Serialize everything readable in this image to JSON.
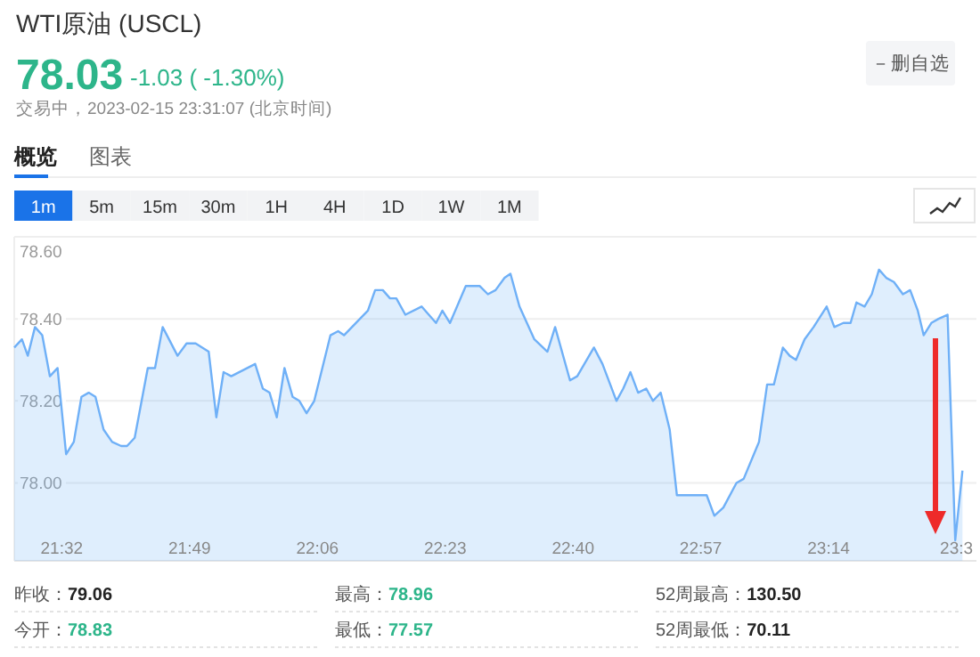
{
  "chart_data": {
    "type": "area",
    "title": "WTI原油 (USCL)",
    "annotations": [
      "78.03",
      "-1.03 ( -1.30%)",
      "交易中，2023-02-15 23:31:07 (北京时间)",
      "－删自选",
      "概览",
      "图表",
      "1m",
      "5m",
      "15m",
      "30m",
      "1H",
      "4H",
      "1D",
      "1W",
      "1M",
      "昨收：79.06",
      "最高：78.96",
      "52周最高：130.50",
      "今开：78.83",
      "最低：77.57",
      "52周最低：70.11"
    ],
    "color": "#6fb0f7",
    "grid": "y",
    "xlim": [
      21.428,
      23.561
    ],
    "ylim": [
      77.81,
      78.6
    ],
    "xticks": [
      {
        "value": 21.5333,
        "label": "21:32"
      },
      {
        "value": 21.8167,
        "label": "21:49"
      },
      {
        "value": 22.1,
        "label": "22:06"
      },
      {
        "value": 22.3833,
        "label": "22:23"
      },
      {
        "value": 22.6667,
        "label": "22:40"
      },
      {
        "value": 22.95,
        "label": "22:57"
      },
      {
        "value": 23.2333,
        "label": "23:14"
      },
      {
        "value": 23.5167,
        "label": "23:3"
      }
    ],
    "yticks": [
      {
        "value": 78,
        "label": "78.00"
      },
      {
        "value": 78.2,
        "label": "78.20"
      },
      {
        "value": 78.4,
        "label": "78.40"
      },
      {
        "value": 78.6,
        "label": "78.60"
      }
    ],
    "x": [
      21.428,
      21.445,
      21.458,
      21.474,
      21.49,
      21.507,
      21.524,
      21.543,
      21.56,
      21.577,
      21.593,
      21.608,
      21.626,
      21.645,
      21.665,
      21.678,
      21.695,
      21.724,
      21.74,
      21.757,
      21.79,
      21.81,
      21.83,
      21.859,
      21.876,
      21.892,
      21.909,
      21.962,
      21.979,
      21.994,
      22.01,
      22.027,
      22.045,
      22.06,
      22.076,
      22.093,
      22.129,
      22.146,
      22.159,
      22.212,
      22.228,
      22.245,
      22.261,
      22.275,
      22.295,
      22.331,
      22.347,
      22.363,
      22.377,
      22.394,
      22.429,
      22.46,
      22.478,
      22.495,
      22.515,
      22.528,
      22.548,
      22.581,
      22.61,
      22.627,
      22.66,
      22.676,
      22.713,
      22.732,
      22.763,
      22.778,
      22.794,
      22.811,
      22.829,
      22.844,
      22.861,
      22.881,
      22.897,
      22.917,
      22.95,
      22.963,
      22.98,
      23.0,
      23.029,
      23.045,
      23.079,
      23.097,
      23.112,
      23.132,
      23.147,
      23.161,
      23.18,
      23.2,
      23.229,
      23.246,
      23.266,
      23.282,
      23.295,
      23.313,
      23.329,
      23.345,
      23.361,
      23.378,
      23.398,
      23.414,
      23.431,
      23.444,
      23.461,
      23.477,
      23.497,
      23.514,
      23.53
    ],
    "values": [
      78.33,
      78.35,
      78.31,
      78.38,
      78.36,
      78.26,
      78.28,
      78.07,
      78.1,
      78.21,
      78.22,
      78.21,
      78.13,
      78.1,
      78.09,
      78.09,
      78.11,
      78.28,
      78.28,
      78.38,
      78.31,
      78.34,
      78.34,
      78.32,
      78.16,
      78.27,
      78.26,
      78.29,
      78.23,
      78.22,
      78.16,
      78.28,
      78.21,
      78.2,
      78.17,
      78.2,
      78.36,
      78.37,
      78.36,
      78.42,
      78.47,
      78.47,
      78.45,
      78.45,
      78.41,
      78.43,
      78.41,
      78.39,
      78.42,
      78.39,
      78.48,
      78.48,
      78.46,
      78.47,
      78.5,
      78.51,
      78.43,
      78.35,
      78.32,
      78.38,
      78.25,
      78.26,
      78.33,
      78.29,
      78.2,
      78.23,
      78.27,
      78.22,
      78.23,
      78.2,
      78.22,
      78.13,
      77.97,
      77.97,
      77.97,
      77.97,
      77.92,
      77.94,
      78.0,
      78.01,
      78.1,
      78.24,
      78.24,
      78.33,
      78.31,
      78.3,
      78.35,
      78.38,
      78.43,
      78.38,
      78.39,
      78.39,
      78.44,
      78.43,
      78.46,
      78.52,
      78.5,
      78.49,
      78.46,
      78.47,
      78.42,
      78.36,
      78.39,
      78.4,
      78.41,
      77.86,
      78.03
    ]
  }
}
